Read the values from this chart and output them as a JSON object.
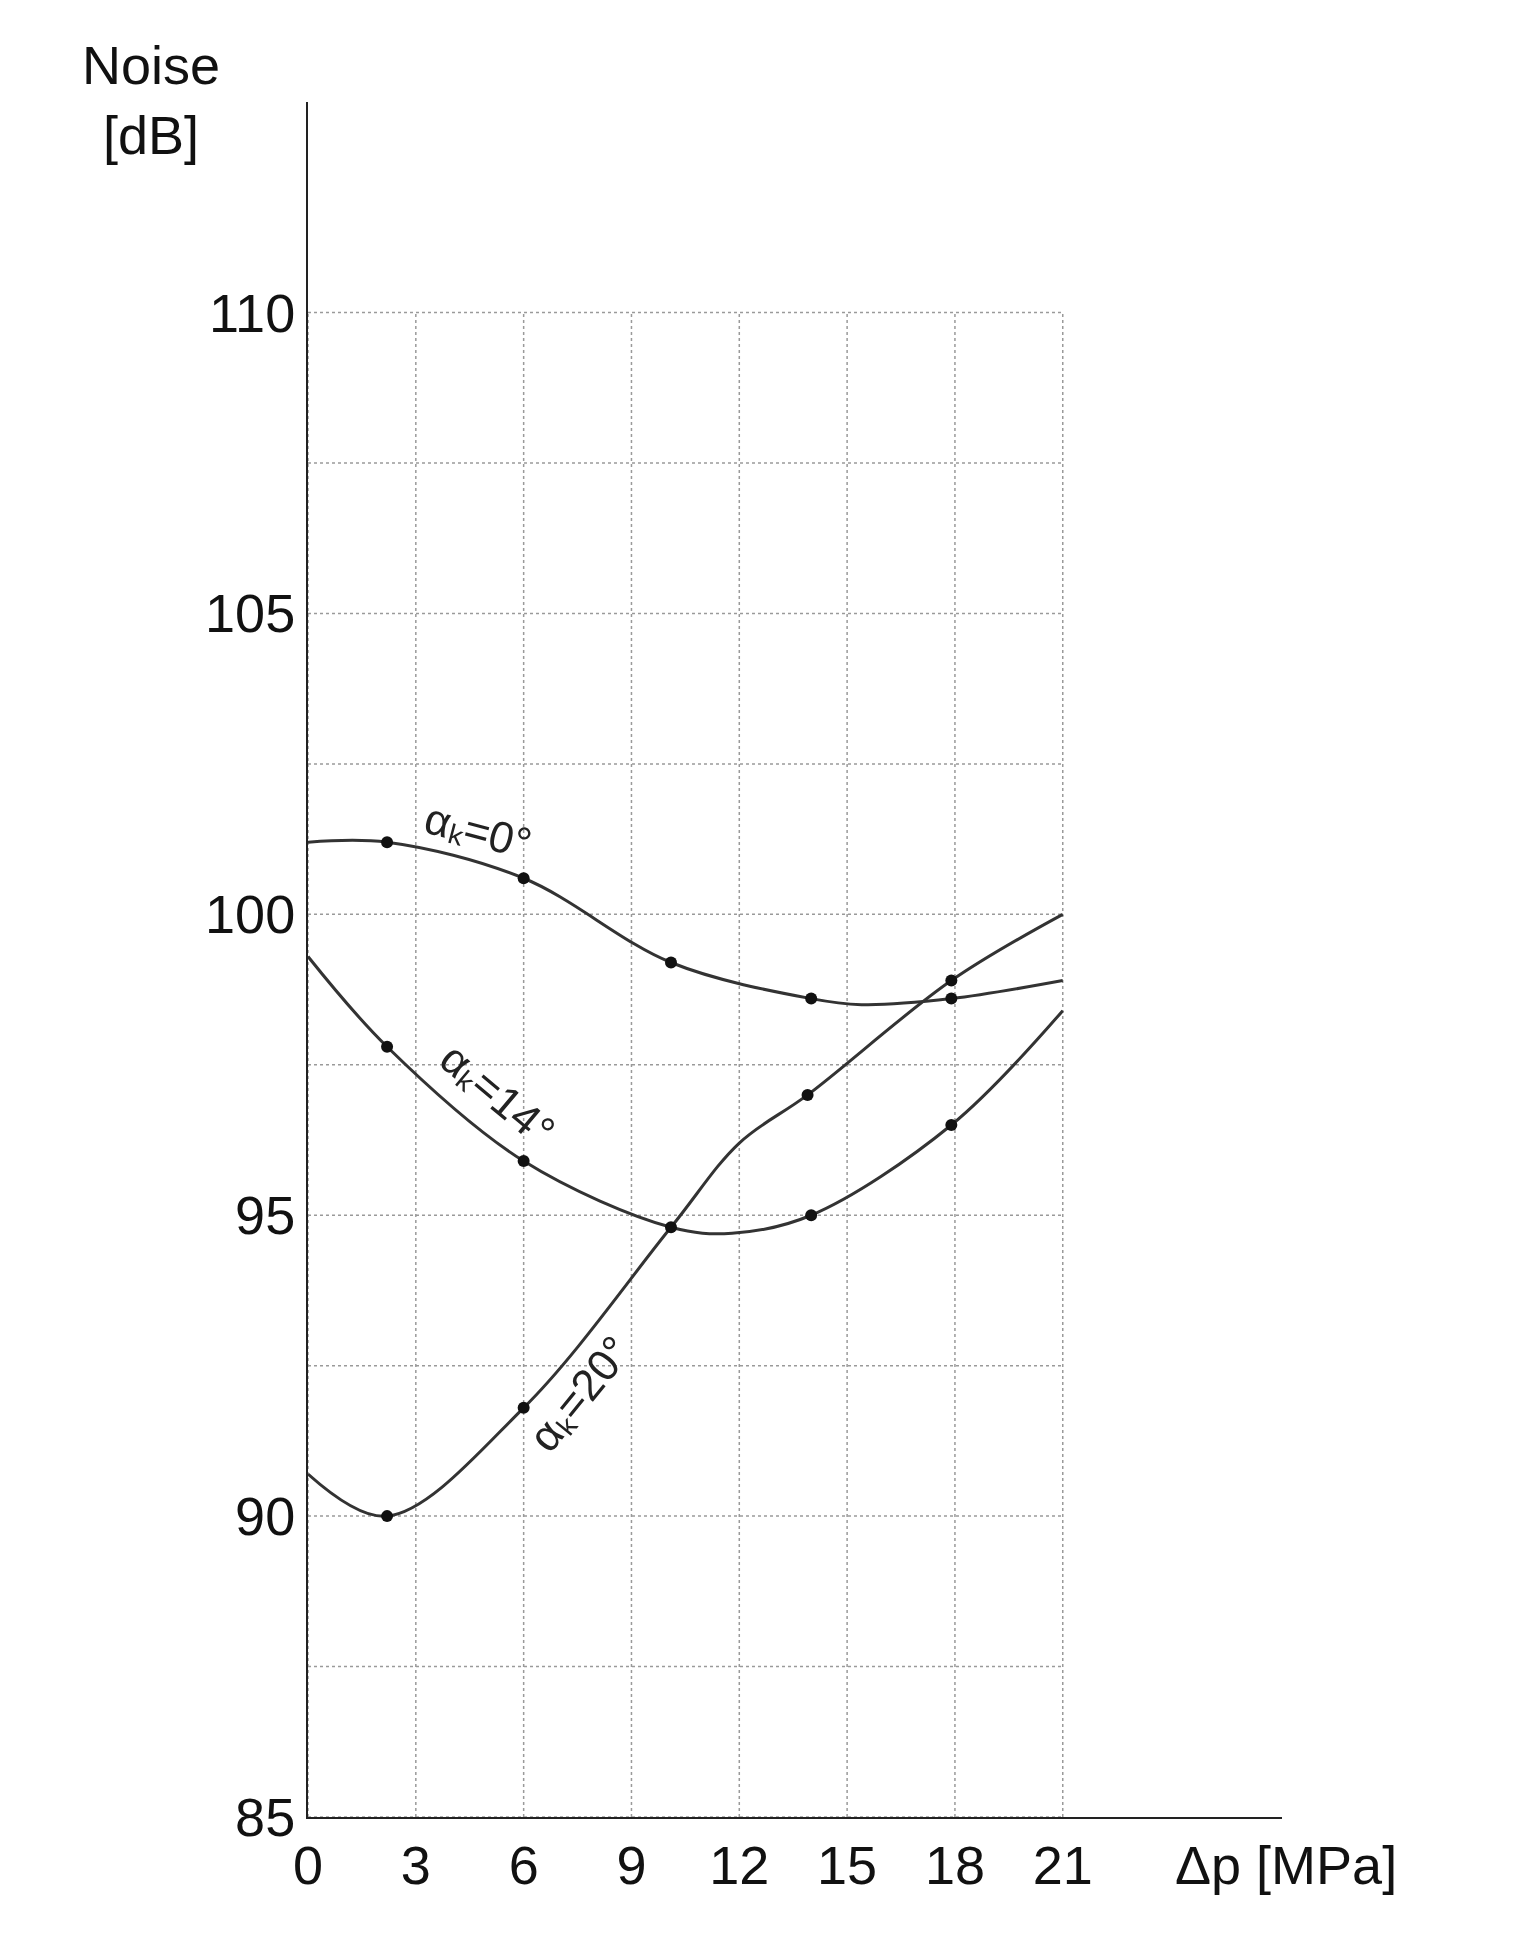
{
  "chart_data": {
    "type": "line",
    "xlabel": "Δp [MPa]",
    "ylabel": "Noise\n[dB]",
    "xlim": [
      0,
      27.1
    ],
    "xticks": [
      0,
      3,
      6,
      9,
      12,
      15,
      18,
      21
    ],
    "ylim": [
      85,
      113.5
    ],
    "yticks": [
      85,
      {
        "value": 87.5,
        "label": null
      },
      90,
      {
        "value": 92.5,
        "label": null
      },
      95,
      {
        "value": 97.5,
        "label": null
      },
      100,
      {
        "value": 102.5,
        "label": null
      },
      105,
      {
        "value": 107.5,
        "label": null
      },
      110
    ],
    "grid": true,
    "legend": false,
    "line_style": "solid",
    "series": [
      {
        "name": "αₖ=0°",
        "color": "#333333",
        "marker": "none",
        "x": [
          0,
          2.2,
          6,
          10.1,
          14,
          15.4,
          17.9,
          21
        ],
        "values": [
          101.2,
          101.2,
          100.6,
          99.2,
          98.6,
          98.5,
          98.6,
          98.9
        ]
      },
      {
        "name": "αₖ=14°",
        "color": "#333333",
        "marker": "none",
        "x": [
          0,
          2.2,
          6,
          10.1,
          11.8,
          14,
          17.9,
          21
        ],
        "values": [
          99.3,
          97.8,
          95.9,
          94.8,
          94.7,
          95.0,
          96.5,
          98.4
        ]
      },
      {
        "name": "αₖ=20°",
        "color": "#333333",
        "marker": "none",
        "x": [
          0,
          2.2,
          6,
          10.1,
          12,
          13.9,
          17.9,
          21
        ],
        "values": [
          90.7,
          90.0,
          91.8,
          94.8,
          96.2,
          97.0,
          98.9,
          100.0
        ]
      },
      {
        "type": "scatter",
        "color": "#111111",
        "marker": "circle",
        "x": [
          2.2,
          6,
          10.1,
          14,
          17.9
        ],
        "values": [
          101.2,
          100.6,
          99.2,
          98.6,
          98.6
        ]
      },
      {
        "type": "scatter",
        "color": "#111111",
        "marker": "circle",
        "x": [
          2.2,
          6,
          10.1,
          14,
          17.9
        ],
        "values": [
          97.8,
          95.9,
          94.8,
          95.0,
          96.5
        ]
      },
      {
        "type": "scatter",
        "color": "#111111",
        "marker": "circle",
        "x": [
          2.2,
          6,
          13.9,
          17.9
        ],
        "values": [
          90.0,
          91.8,
          97.0,
          98.9
        ]
      }
    ]
  }
}
